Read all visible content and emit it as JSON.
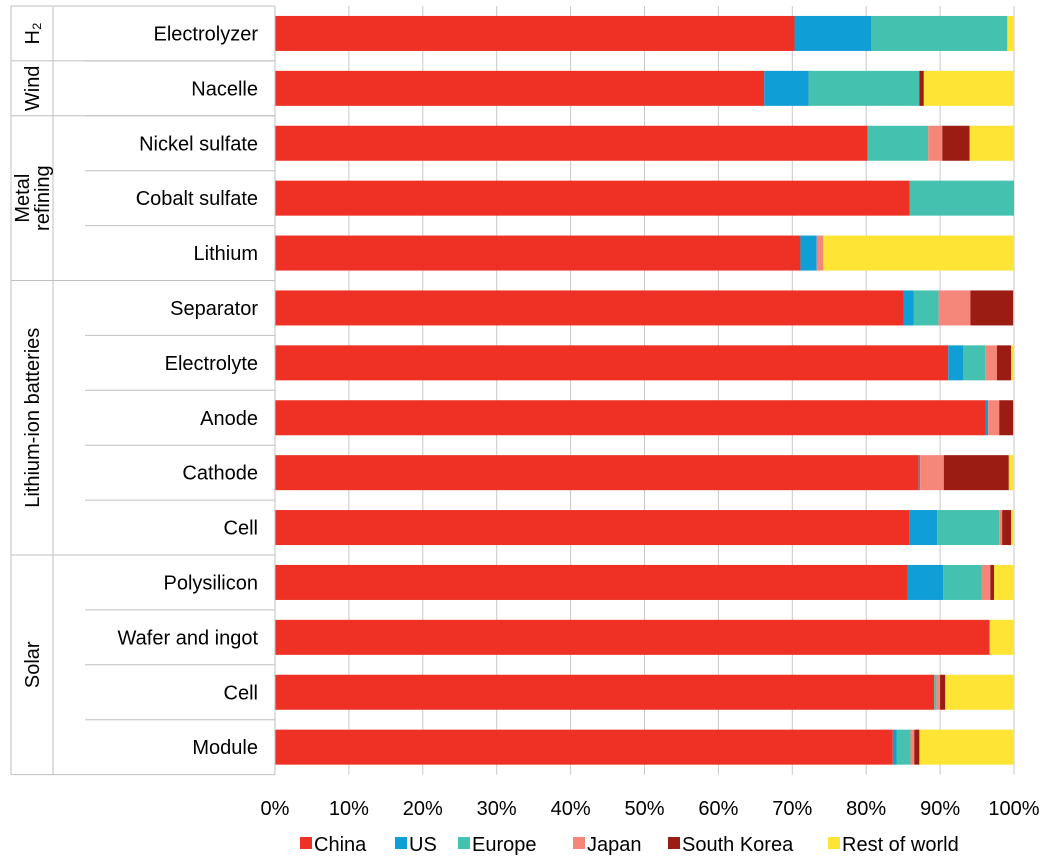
{
  "chart_data": {
    "type": "bar",
    "orientation": "horizontal",
    "stacked": true,
    "title": "",
    "xlabel": "",
    "ylabel": "",
    "xlim": [
      0,
      100
    ],
    "x_ticks": [
      "0%",
      "10%",
      "20%",
      "30%",
      "40%",
      "50%",
      "60%",
      "70%",
      "80%",
      "90%",
      "100%"
    ],
    "grid": "vertical",
    "legend_position": "bottom",
    "groups": [
      {
        "label": "H₂",
        "rows": 1
      },
      {
        "label": "Wind",
        "rows": 1
      },
      {
        "label": "Metal refining",
        "rows": 3
      },
      {
        "label": "Lithium-ion batteries",
        "rows": 5
      },
      {
        "label": "Solar",
        "rows": 4
      }
    ],
    "categories": [
      "Electrolyzer",
      "Nacelle",
      "Nickel sulfate",
      "Cobalt sulfate",
      "Lithium",
      "Separator",
      "Electrolyte",
      "Anode",
      "Cathode",
      "Cell",
      "Polysilicon",
      "Wafer and ingot",
      "Cell",
      "Module"
    ],
    "series": [
      {
        "name": "China",
        "color": "#ee3124",
        "values": [
          70.3,
          66.2,
          80.2,
          85.9,
          71.1,
          85.1,
          91.1,
          96.2,
          87.1,
          85.9,
          85.6,
          96.7,
          89.2,
          83.6
        ]
      },
      {
        "name": "US",
        "color": "#0f9ed5",
        "values": [
          10.4,
          6.0,
          0,
          0,
          2.2,
          1.3,
          2.0,
          0.3,
          0.2,
          3.7,
          4.8,
          0,
          0,
          0.5
        ]
      },
      {
        "name": "Europe",
        "color": "#45c1b0",
        "values": [
          18.4,
          15.0,
          8.2,
          14.1,
          0,
          3.4,
          3.0,
          0,
          0,
          8.4,
          5.2,
          0,
          0.3,
          1.9
        ]
      },
      {
        "name": "Japan",
        "color": "#f4877a",
        "values": [
          0,
          0,
          1.9,
          0,
          0.9,
          4.3,
          1.6,
          1.5,
          3.2,
          0.4,
          1.2,
          0,
          0.5,
          0.5
        ]
      },
      {
        "name": "South Korea",
        "color": "#9b1c12",
        "values": [
          0,
          0.6,
          3.7,
          0,
          0,
          5.8,
          1.9,
          1.9,
          8.8,
          1.2,
          0.5,
          0,
          0.7,
          0.7
        ]
      },
      {
        "name": "Rest of world",
        "color": "#fee434",
        "values": [
          0.9,
          12.2,
          6.0,
          0,
          25.8,
          0.1,
          0.4,
          0.1,
          0.7,
          0.4,
          2.7,
          3.3,
          9.3,
          12.8
        ]
      }
    ]
  }
}
